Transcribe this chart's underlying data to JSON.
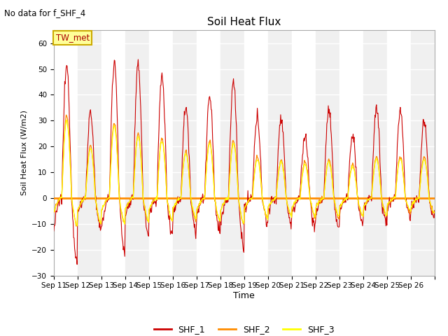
{
  "title": "Soil Heat Flux",
  "ylabel": "Soil Heat Flux (W/m2)",
  "xlabel": "Time",
  "no_data_text": "No data for f_SHF_4",
  "annotation_text": "TW_met",
  "ylim": [
    -30,
    65
  ],
  "yticks": [
    -30,
    -20,
    -10,
    0,
    10,
    20,
    30,
    40,
    50,
    60
  ],
  "xtick_labels": [
    "Sep 11",
    "Sep 12",
    "Sep 13",
    "Sep 14",
    "Sep 15",
    "Sep 16",
    "Sep 17",
    "Sep 18",
    "Sep 19",
    "Sep 20",
    "Sep 21",
    "Sep 22",
    "Sep 23",
    "Sep 24",
    "Sep 25",
    "Sep 26"
  ],
  "colors": {
    "SHF_1": "#cc0000",
    "SHF_2": "#ff8c00",
    "SHF_3": "#ffff00",
    "hline": "#ff8c00",
    "background": "#ffffff",
    "plot_bg_light": "#f0f0f0",
    "plot_bg_dark": "#dcdcdc",
    "annotation_bg": "#ffff99",
    "annotation_border": "#ccaa00"
  },
  "legend_entries": [
    "SHF_1",
    "SHF_2",
    "SHF_3"
  ],
  "n_days": 16,
  "pts_per_day": 48,
  "day_peaks_shf1": [
    51,
    33,
    53,
    51,
    47,
    35,
    39,
    45,
    31,
    31,
    24,
    34,
    24,
    35,
    34,
    30
  ],
  "day_mins_shf1": [
    -25,
    -13,
    -22,
    -14,
    -14,
    -13,
    -13,
    -20,
    -10,
    -10,
    -12,
    -12,
    -10,
    -10,
    -7,
    -8
  ],
  "day_peaks_shf2": [
    32,
    20,
    29,
    25,
    23,
    18,
    22,
    22,
    16,
    15,
    14,
    15,
    13,
    16,
    16,
    16
  ],
  "day_mins_shf2": [
    -11,
    -10,
    -10,
    -9,
    -9,
    -9,
    -9,
    -10,
    -8,
    -7,
    -8,
    -8,
    -7,
    -7,
    -6,
    -6
  ],
  "day_peaks_shf3": [
    30,
    19,
    28,
    24,
    22,
    17,
    21,
    21,
    15,
    14,
    13,
    14,
    12,
    15,
    15,
    15
  ],
  "day_mins_shf3": [
    -11,
    -10,
    -10,
    -9,
    -9,
    -8,
    -9,
    -10,
    -8,
    -7,
    -7,
    -7,
    -7,
    -7,
    -5,
    -6
  ]
}
